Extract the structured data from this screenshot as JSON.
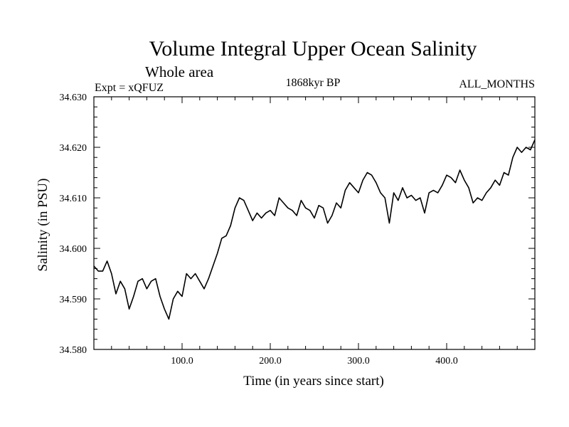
{
  "chart_data": {
    "type": "line",
    "title": "Volume Integral Upper Ocean Salinity",
    "subtitle": "Whole area",
    "experiment": "Expt = xQFUZ",
    "period": "1868kyr BP",
    "months": "ALL_MONTHS",
    "xlabel": "Time (in years since start)",
    "ylabel": "Salinity (in PSU)",
    "xlim": [
      0,
      500
    ],
    "ylim": [
      34.58,
      34.63
    ],
    "x_ticks": [
      100,
      200,
      300,
      400
    ],
    "x_tick_labels": [
      "100.0",
      "200.0",
      "300.0",
      "400.0"
    ],
    "y_ticks": [
      34.58,
      34.59,
      34.6,
      34.61,
      34.62,
      34.63
    ],
    "y_tick_labels": [
      "34.580",
      "34.590",
      "34.600",
      "34.610",
      "34.620",
      "34.630"
    ],
    "grid": false,
    "series": [
      {
        "name": "Salinity",
        "x": [
          0,
          5,
          10,
          15,
          20,
          25,
          30,
          35,
          40,
          45,
          50,
          55,
          60,
          65,
          70,
          75,
          80,
          85,
          90,
          95,
          100,
          105,
          110,
          115,
          120,
          125,
          130,
          135,
          140,
          145,
          150,
          155,
          160,
          165,
          170,
          175,
          180,
          185,
          190,
          195,
          200,
          205,
          210,
          215,
          220,
          225,
          230,
          235,
          240,
          245,
          250,
          255,
          260,
          265,
          270,
          275,
          280,
          285,
          290,
          295,
          300,
          305,
          310,
          315,
          320,
          325,
          330,
          335,
          340,
          345,
          350,
          355,
          360,
          365,
          370,
          375,
          380,
          385,
          390,
          395,
          400,
          405,
          410,
          415,
          420,
          425,
          430,
          435,
          440,
          445,
          450,
          455,
          460,
          465,
          470,
          475,
          480,
          485,
          490,
          495,
          500
        ],
        "values": [
          34.5965,
          34.5955,
          34.5955,
          34.5975,
          34.595,
          34.591,
          34.5935,
          34.592,
          34.588,
          34.5905,
          34.5935,
          34.594,
          34.592,
          34.5935,
          34.594,
          34.5905,
          34.588,
          34.586,
          34.59,
          34.5915,
          34.5905,
          34.595,
          34.594,
          34.595,
          34.5935,
          34.592,
          34.594,
          34.5965,
          34.599,
          34.602,
          34.6025,
          34.6045,
          34.608,
          34.61,
          34.6095,
          34.6075,
          34.6055,
          34.607,
          34.606,
          34.607,
          34.6075,
          34.6065,
          34.61,
          34.609,
          34.608,
          34.6075,
          34.6065,
          34.6095,
          34.608,
          34.6075,
          34.606,
          34.6085,
          34.608,
          34.605,
          34.6065,
          34.609,
          34.608,
          34.6115,
          34.613,
          34.612,
          34.611,
          34.6135,
          34.615,
          34.6145,
          34.613,
          34.611,
          34.61,
          34.605,
          34.611,
          34.6095,
          34.612,
          34.61,
          34.6105,
          34.6095,
          34.61,
          34.607,
          34.611,
          34.6115,
          34.611,
          34.6125,
          34.6145,
          34.614,
          34.613,
          34.6155,
          34.6135,
          34.612,
          34.609,
          34.61,
          34.6095,
          34.611,
          34.612,
          34.6135,
          34.6125,
          34.615,
          34.6145,
          34.618,
          34.62,
          34.619,
          34.62,
          34.6195,
          34.6215
        ]
      }
    ]
  }
}
